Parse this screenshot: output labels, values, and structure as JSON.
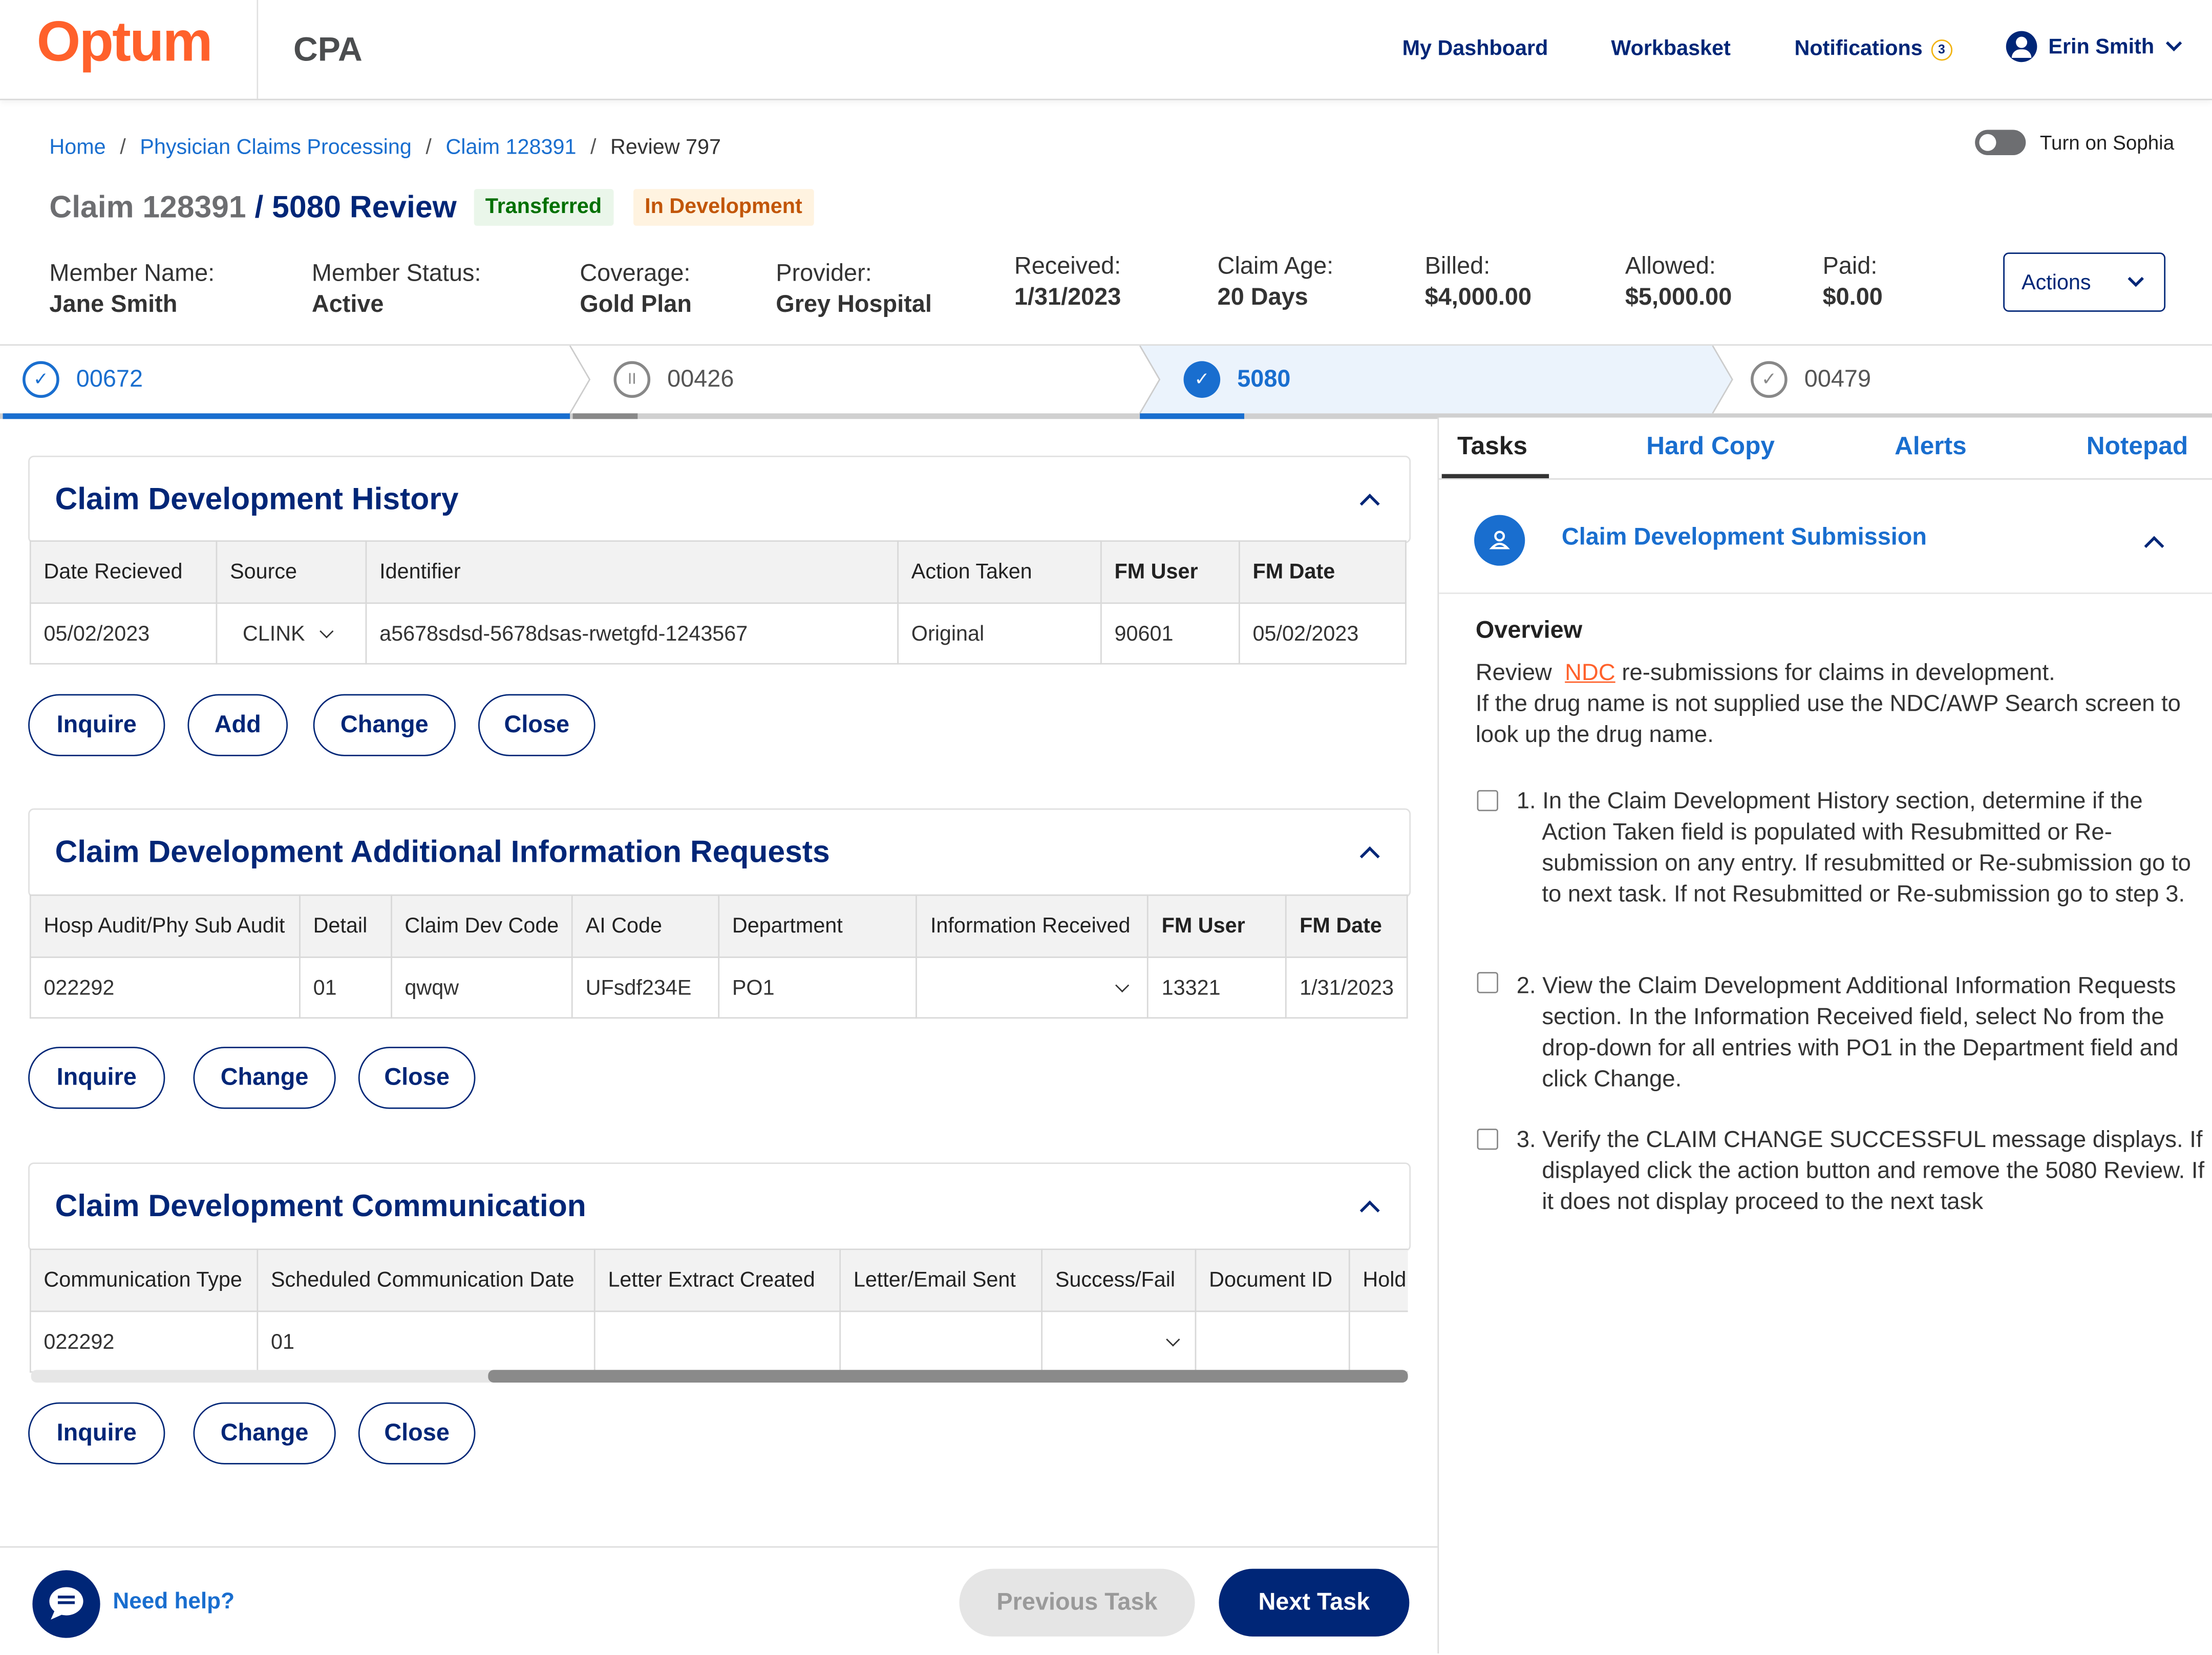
{
  "header": {
    "logo": "Optum",
    "app_name": "CPA",
    "nav": [
      "My Dashboard",
      "Workbasket",
      "Notifications"
    ],
    "notification_count": "3",
    "user_name": "Erin Smith"
  },
  "breadcrumb": [
    "Home",
    "Physician Claims Processing",
    "Claim 128391",
    "Review 797"
  ],
  "sophia_label": "Turn on Sophia",
  "title": {
    "claim": "Claim 128391",
    "review": "/ 5080 Review",
    "badge_transferred": "Transferred",
    "badge_dev": "In Development"
  },
  "summary": [
    {
      "label": "Member Name:",
      "value": "Jane Smith"
    },
    {
      "label": "Member Status:",
      "value": "Active"
    },
    {
      "label": "Coverage:",
      "value": "Gold Plan"
    },
    {
      "label": "Provider:",
      "value": "Grey Hospital"
    },
    {
      "label": "Received:",
      "value": "1/31/2023"
    },
    {
      "label": "Claim Age:",
      "value": "20 Days"
    },
    {
      "label": "Billed:",
      "value": "$4,000.00"
    },
    {
      "label": "Allowed:",
      "value": "$5,000.00"
    },
    {
      "label": "Paid:",
      "value": "$0.00"
    }
  ],
  "actions_label": "Actions",
  "steps": [
    {
      "label": "00672",
      "state": "complete"
    },
    {
      "label": "00426",
      "state": "paused"
    },
    {
      "label": "5080",
      "state": "current"
    },
    {
      "label": "00479",
      "state": "pending"
    }
  ],
  "history": {
    "title": "Claim Development History",
    "headers": [
      "Date Recieved",
      "Source",
      "Identifier",
      "Action Taken",
      "FM User",
      "FM Date"
    ],
    "row": [
      "05/02/2023",
      "CLINK",
      "a5678sdsd-5678dsas-rwetgfd-1243567",
      "Original",
      "90601",
      "05/02/2023"
    ],
    "buttons": [
      "Inquire",
      "Add",
      "Change",
      "Close"
    ]
  },
  "ai_requests": {
    "title": "Claim Development Additional Information Requests",
    "headers": [
      "Hosp Audit/Phy Sub Audit",
      "Detail",
      "Claim Dev Code",
      "AI Code",
      "Department",
      "Information Received",
      "FM User",
      "FM Date"
    ],
    "row": [
      "022292",
      "01",
      "qwqw",
      "UFsdf234E",
      "PO1",
      "",
      "13321",
      "1/31/2023"
    ],
    "buttons": [
      "Inquire",
      "Change",
      "Close"
    ]
  },
  "communication": {
    "title": "Claim Development Communication",
    "headers": [
      "Communication Type",
      "Scheduled Communication Date",
      "Letter Extract Created",
      "Letter/Email Sent",
      "Success/Fail",
      "Document ID",
      "Hold"
    ],
    "row": [
      "022292",
      "01",
      "",
      "",
      "",
      "",
      ""
    ],
    "buttons": [
      "Inquire",
      "Change",
      "Close"
    ]
  },
  "footer": {
    "help": "Need help?",
    "prev": "Previous Task",
    "next": "Next Task"
  },
  "right_panel": {
    "tabs": [
      "Tasks",
      "Hard Copy",
      "Alerts",
      "Notepad"
    ],
    "section_title": "Claim Development Submission",
    "overview_heading": "Overview",
    "overview_pre": "Review",
    "overview_link": "NDC",
    "overview_post": "re-submissions for claims in development.",
    "overview_line2": "If the drug name is not supplied use the NDC/AWP Search screen to look up the drug name.",
    "tasks": [
      "1. In the Claim Development History section, determine if the Action Taken field is populated with Resubmitted or Re-submission on any entry. If resubmitted or Re-submission go to to next task. If not Resubmitted or Re-submission go to step 3.",
      "2. View the Claim Development Additional Information Requests section. In the Information Received field, select No from the drop-down for all entries with PO1 in the Department field and click Change.",
      "3. Verify the CLAIM CHANGE SUCCESSFUL message displays. If  displayed click the action button and remove the 5080 Review. If it does not display proceed to the next task"
    ]
  },
  "colors": {
    "brand": "#FF612B",
    "navy": "#002677",
    "link": "#196ECF",
    "step_active_bg": "#EBF3FC"
  }
}
